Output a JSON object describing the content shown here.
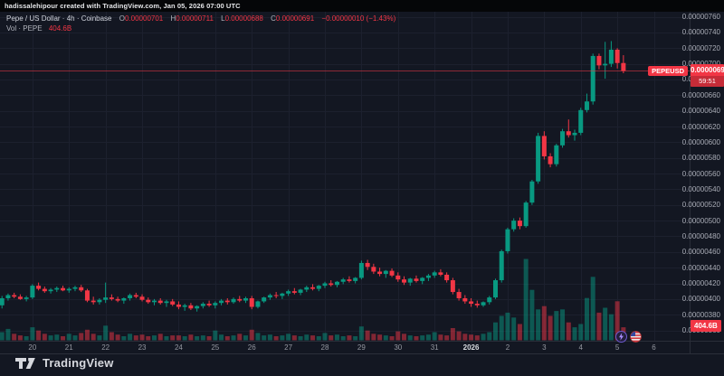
{
  "attribution": {
    "text": "hadissalehipour created with TradingView.com, Jan 05, 2026 07:00 UTC"
  },
  "legend": {
    "title": "Pepe / US Dollar · 4h · Coinbase",
    "o_label": "O",
    "o": "0.00000701",
    "h_label": "H",
    "h": "0.00000711",
    "l_label": "L",
    "l": "0.00000688",
    "c_label": "C",
    "c": "0.00000691",
    "change": "−0.00000010 (−1.43%)",
    "vol_label": "Vol · PEPE",
    "vol_value": "404.6B"
  },
  "price_label": {
    "symbol": "PEPEUSD",
    "price": "0.00000691",
    "countdown": "59:51"
  },
  "volume_axis_label": "404.6B",
  "footer": {
    "logo_text": "TradingView"
  },
  "colors": {
    "up": "#089981",
    "down": "#f23645",
    "bg": "#131722",
    "grid": "#1c202e",
    "axis_text": "#a8abb5",
    "divider": "#2a2e39"
  },
  "icons": {
    "event1": "lightning-event-icon",
    "event2": "us-flag-event-icon"
  },
  "chart_data": {
    "type": "candlestick",
    "title": "Pepe / US Dollar · 4h · Coinbase",
    "symbol": "PEPEUSD",
    "interval": "4h",
    "exchange": "Coinbase",
    "last_candle_ohlc_e8": {
      "open": 701,
      "high": 711,
      "low": 688,
      "close": 691
    },
    "last_price_e8": 691,
    "change": "−0.00000010 (−1.43%)",
    "volume_display": "404.6B",
    "ylim_e8": [
      360,
      760
    ],
    "y_step_e8": 20,
    "price_tick_format_prefix": "0.00000",
    "grid": true,
    "legend_position": "top-left",
    "time_ticks": [
      [
        "20",
        5
      ],
      [
        "21",
        11
      ],
      [
        "22",
        17
      ],
      [
        "23",
        23
      ],
      [
        "24",
        29
      ],
      [
        "25",
        35
      ],
      [
        "26",
        41
      ],
      [
        "27",
        47
      ],
      [
        "28",
        53
      ],
      [
        "29",
        59
      ],
      [
        "30",
        65
      ],
      [
        "31",
        71
      ],
      [
        "2026",
        77
      ],
      [
        "2",
        83
      ],
      [
        "3",
        89
      ],
      [
        "4",
        95
      ],
      [
        "5",
        101
      ],
      [
        "6",
        107
      ]
    ],
    "candles": [
      [
        392,
        404,
        388,
        401
      ],
      [
        401,
        407,
        398,
        405
      ],
      [
        405,
        408,
        401,
        403
      ],
      [
        403,
        406,
        399,
        400
      ],
      [
        400,
        404,
        397,
        402
      ],
      [
        402,
        419,
        400,
        417
      ],
      [
        417,
        421,
        411,
        413
      ],
      [
        413,
        416,
        408,
        410
      ],
      [
        410,
        414,
        407,
        412
      ],
      [
        412,
        416,
        409,
        414
      ],
      [
        414,
        417,
        410,
        411
      ],
      [
        411,
        415,
        408,
        413
      ],
      [
        413,
        417,
        410,
        415
      ],
      [
        415,
        418,
        409,
        411
      ],
      [
        411,
        413,
        396,
        398
      ],
      [
        398,
        403,
        393,
        396
      ],
      [
        396,
        401,
        393,
        399
      ],
      [
        399,
        421,
        395,
        402
      ],
      [
        402,
        406,
        398,
        400
      ],
      [
        400,
        403,
        396,
        398
      ],
      [
        398,
        402,
        394,
        401
      ],
      [
        401,
        407,
        398,
        405
      ],
      [
        405,
        408,
        401,
        403
      ],
      [
        403,
        406,
        397,
        399
      ],
      [
        399,
        402,
        394,
        396
      ],
      [
        396,
        400,
        392,
        398
      ],
      [
        398,
        401,
        393,
        395
      ],
      [
        395,
        399,
        390,
        397
      ],
      [
        397,
        400,
        391,
        393
      ],
      [
        393,
        397,
        387,
        390
      ],
      [
        390,
        394,
        385,
        392
      ],
      [
        392,
        395,
        386,
        388
      ],
      [
        388,
        392,
        384,
        391
      ],
      [
        391,
        396,
        388,
        394
      ],
      [
        394,
        398,
        390,
        392
      ],
      [
        392,
        397,
        388,
        395
      ],
      [
        395,
        400,
        392,
        398
      ],
      [
        398,
        401,
        393,
        396
      ],
      [
        396,
        402,
        394,
        400
      ],
      [
        400,
        404,
        396,
        398
      ],
      [
        398,
        403,
        395,
        401
      ],
      [
        401,
        404,
        387,
        390
      ],
      [
        390,
        398,
        388,
        397
      ],
      [
        397,
        403,
        395,
        402
      ],
      [
        402,
        407,
        399,
        405
      ],
      [
        405,
        409,
        401,
        404
      ],
      [
        404,
        408,
        400,
        407
      ],
      [
        407,
        412,
        404,
        410
      ],
      [
        410,
        414,
        406,
        408
      ],
      [
        408,
        413,
        405,
        412
      ],
      [
        412,
        417,
        409,
        415
      ],
      [
        415,
        419,
        411,
        413
      ],
      [
        413,
        418,
        410,
        417
      ],
      [
        417,
        422,
        414,
        420
      ],
      [
        420,
        424,
        416,
        418
      ],
      [
        418,
        423,
        415,
        422
      ],
      [
        422,
        427,
        419,
        425
      ],
      [
        425,
        429,
        421,
        423
      ],
      [
        423,
        428,
        420,
        427
      ],
      [
        427,
        449,
        425,
        446
      ],
      [
        446,
        450,
        437,
        441
      ],
      [
        441,
        445,
        432,
        435
      ],
      [
        435,
        440,
        429,
        432
      ],
      [
        432,
        437,
        427,
        436
      ],
      [
        436,
        439,
        428,
        430
      ],
      [
        430,
        434,
        422,
        425
      ],
      [
        425,
        429,
        418,
        421
      ],
      [
        421,
        427,
        417,
        426
      ],
      [
        426,
        430,
        421,
        423
      ],
      [
        423,
        428,
        419,
        427
      ],
      [
        427,
        432,
        423,
        430
      ],
      [
        430,
        436,
        427,
        434
      ],
      [
        434,
        438,
        429,
        431
      ],
      [
        431,
        434,
        421,
        424
      ],
      [
        424,
        427,
        406,
        409
      ],
      [
        409,
        413,
        398,
        401
      ],
      [
        401,
        405,
        394,
        397
      ],
      [
        397,
        401,
        390,
        394
      ],
      [
        394,
        398,
        389,
        392
      ],
      [
        392,
        397,
        390,
        396
      ],
      [
        396,
        404,
        393,
        402
      ],
      [
        402,
        426,
        400,
        424
      ],
      [
        424,
        463,
        421,
        461
      ],
      [
        461,
        491,
        458,
        489
      ],
      [
        489,
        503,
        486,
        500
      ],
      [
        500,
        504,
        489,
        493
      ],
      [
        493,
        525,
        491,
        523
      ],
      [
        523,
        552,
        520,
        550
      ],
      [
        550,
        612,
        547,
        608
      ],
      [
        608,
        614,
        578,
        582
      ],
      [
        582,
        586,
        568,
        572
      ],
      [
        572,
        598,
        569,
        596
      ],
      [
        596,
        617,
        593,
        614
      ],
      [
        614,
        629,
        606,
        609
      ],
      [
        609,
        616,
        602,
        612
      ],
      [
        612,
        644,
        609,
        641
      ],
      [
        641,
        662,
        638,
        652
      ],
      [
        652,
        713,
        648,
        710
      ],
      [
        710,
        713,
        693,
        698
      ],
      [
        698,
        728,
        681,
        700
      ],
      [
        700,
        729,
        696,
        718
      ],
      [
        718,
        720,
        694,
        701
      ],
      [
        701,
        711,
        688,
        691
      ]
    ],
    "volumes": [
      0.1,
      0.14,
      0.08,
      0.06,
      0.05,
      0.16,
      0.12,
      0.08,
      0.06,
      0.07,
      0.05,
      0.08,
      0.06,
      0.09,
      0.13,
      0.08,
      0.06,
      0.18,
      0.1,
      0.07,
      0.05,
      0.08,
      0.06,
      0.07,
      0.05,
      0.06,
      0.08,
      0.05,
      0.06,
      0.06,
      0.05,
      0.07,
      0.05,
      0.06,
      0.05,
      0.12,
      0.07,
      0.05,
      0.06,
      0.08,
      0.06,
      0.13,
      0.09,
      0.06,
      0.07,
      0.05,
      0.06,
      0.08,
      0.06,
      0.05,
      0.07,
      0.06,
      0.05,
      0.09,
      0.06,
      0.07,
      0.05,
      0.06,
      0.05,
      0.17,
      0.12,
      0.08,
      0.07,
      0.06,
      0.05,
      0.11,
      0.08,
      0.06,
      0.05,
      0.06,
      0.07,
      0.1,
      0.07,
      0.06,
      0.15,
      0.11,
      0.08,
      0.07,
      0.06,
      0.08,
      0.1,
      0.22,
      0.3,
      0.34,
      0.28,
      0.2,
      1.0,
      0.62,
      0.38,
      0.42,
      0.3,
      0.36,
      0.38,
      0.22,
      0.16,
      0.2,
      0.52,
      0.78,
      0.34,
      0.4,
      0.32,
      0.48,
      0.16
    ]
  }
}
